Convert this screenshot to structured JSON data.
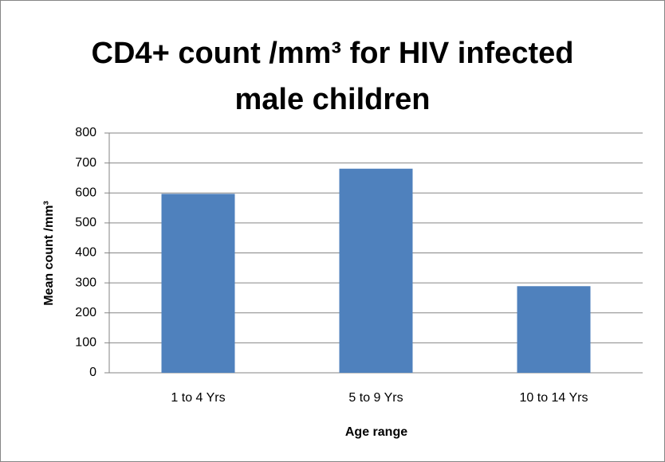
{
  "chart_data": {
    "type": "bar",
    "title": "CD4+ count /mm³ for HIV infected male children",
    "x_label": "Age range",
    "y_label": "Mean count /mm³",
    "categories": [
      "1 to 4 Yrs",
      "5 to 9 Yrs",
      "10 to 14 Yrs"
    ],
    "values": [
      597,
      681,
      289
    ],
    "color": "#4f81bd",
    "ylim": [
      0,
      800
    ],
    "yticks": [
      0,
      100,
      200,
      300,
      400,
      500,
      600,
      700,
      800
    ],
    "grid": true
  }
}
